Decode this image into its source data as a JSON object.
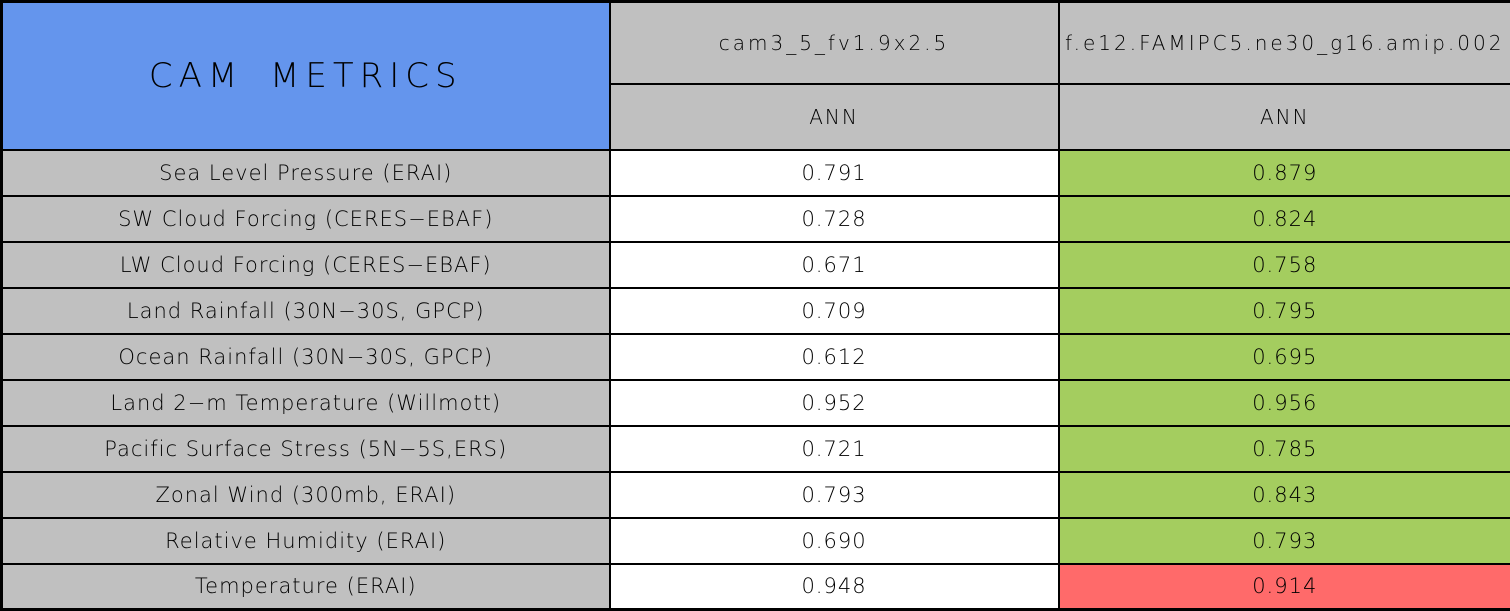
{
  "table": {
    "title": "CAM METRICS",
    "model_columns": [
      "cam3_5_fv1.9x2.5",
      "f.e12.FAMIPC5.ne30_g16.amip.002"
    ],
    "season_columns": [
      "ANN",
      "ANN"
    ],
    "rows": [
      {
        "metric": "Sea Level Pressure (ERAI)",
        "control": "0.791",
        "test": "0.879",
        "test_status": "better"
      },
      {
        "metric": "SW Cloud Forcing (CERES−EBAF)",
        "control": "0.728",
        "test": "0.824",
        "test_status": "better"
      },
      {
        "metric": "LW Cloud Forcing (CERES−EBAF)",
        "control": "0.671",
        "test": "0.758",
        "test_status": "better"
      },
      {
        "metric": "Land Rainfall (30N−30S, GPCP)",
        "control": "0.709",
        "test": "0.795",
        "test_status": "better"
      },
      {
        "metric": "Ocean Rainfall (30N−30S, GPCP)",
        "control": "0.612",
        "test": "0.695",
        "test_status": "better"
      },
      {
        "metric": "Land 2−m Temperature (Willmott)",
        "control": "0.952",
        "test": "0.956",
        "test_status": "better"
      },
      {
        "metric": "Pacific Surface Stress (5N−5S,ERS)",
        "control": "0.721",
        "test": "0.785",
        "test_status": "better"
      },
      {
        "metric": "Zonal Wind (300mb, ERAI)",
        "control": "0.793",
        "test": "0.843",
        "test_status": "better"
      },
      {
        "metric": "Relative Humidity (ERAI)",
        "control": "0.690",
        "test": "0.793",
        "test_status": "better"
      },
      {
        "metric": "Temperature (ERAI)",
        "control": "0.948",
        "test": "0.914",
        "test_status": "worse"
      }
    ]
  },
  "colors": {
    "header_blue": "#6495ED",
    "cell_gray": "#C0C0C0",
    "better_green": "#A4CD5F",
    "worse_red": "#FF6A6A",
    "control_white": "#FFFFFF",
    "border_black": "#000000"
  },
  "chart_data": {
    "type": "table",
    "title": "CAM METRICS",
    "columns": [
      "CAM METRICS",
      "cam3_5_fv1.9x2.5 ANN",
      "f.e12.FAMIPC5.ne30_g16.amip.002 ANN"
    ],
    "series": [
      {
        "name": "cam3_5_fv1.9x2.5 (ANN)",
        "values": [
          0.791,
          0.728,
          0.671,
          0.709,
          0.612,
          0.952,
          0.721,
          0.793,
          0.69,
          0.948
        ]
      },
      {
        "name": "f.e12.FAMIPC5.ne30_g16.amip.002 (ANN)",
        "values": [
          0.879,
          0.824,
          0.758,
          0.795,
          0.695,
          0.956,
          0.785,
          0.843,
          0.793,
          0.914
        ]
      }
    ],
    "categories": [
      "Sea Level Pressure (ERAI)",
      "SW Cloud Forcing (CERES−EBAF)",
      "LW Cloud Forcing (CERES−EBAF)",
      "Land Rainfall (30N−30S, GPCP)",
      "Ocean Rainfall (30N−30S, GPCP)",
      "Land 2−m Temperature (Willmott)",
      "Pacific Surface Stress (5N−5S,ERS)",
      "Zonal Wind (300mb, ERAI)",
      "Relative Humidity (ERAI)",
      "Temperature (ERAI)"
    ],
    "cell_highlighting": {
      "green": "test case better than control",
      "red": "test case worse than control",
      "green_cells_rows": [
        1,
        2,
        3,
        4,
        5,
        6,
        7,
        8,
        9
      ],
      "red_cells_rows": [
        10
      ]
    }
  }
}
